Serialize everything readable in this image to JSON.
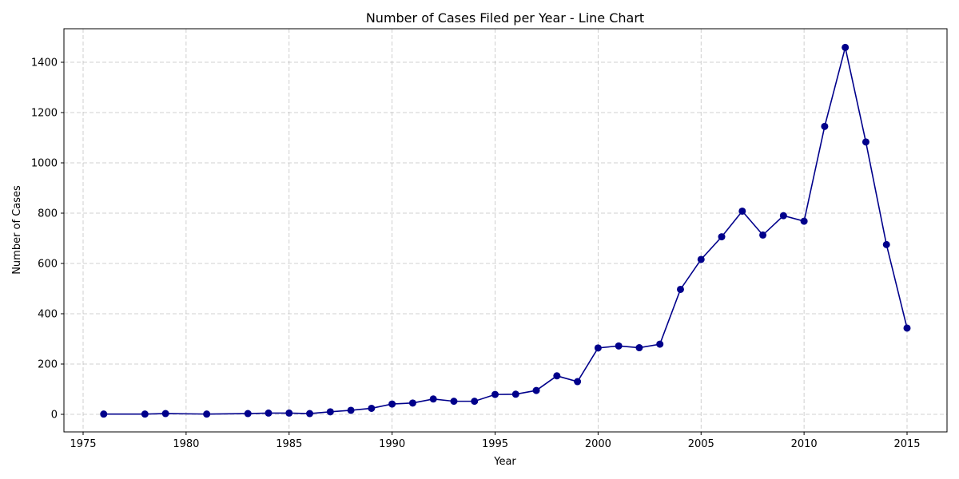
{
  "chart_data": {
    "type": "line",
    "title": "Number of Cases Filed per Year - Line Chart",
    "xlabel": "Year",
    "ylabel": "Number of Cases",
    "xlim": [
      1974.05,
      1916.95
    ],
    "ylim": [
      -72,
      1530
    ],
    "xticks": [
      1975,
      1980,
      1985,
      1990,
      1995,
      2000,
      2005,
      2010,
      2015
    ],
    "yticks": [
      0,
      200,
      400,
      600,
      800,
      1000,
      1200,
      1400
    ],
    "grid": true,
    "line_color": "#00008b",
    "series": [
      {
        "x": [
          1976,
          1978,
          1979,
          1981,
          1983,
          1984,
          1985,
          1986,
          1987,
          1988,
          1989,
          1990,
          1991,
          1992,
          1993,
          1994,
          1995,
          1996,
          1997,
          1998,
          1999,
          2000,
          2001,
          2002,
          2003,
          2004,
          2005,
          2006,
          2007,
          2008,
          2009,
          2010,
          2011,
          2012,
          2013,
          2014,
          2015
        ],
        "y": [
          1,
          1,
          3,
          1,
          3,
          5,
          5,
          3,
          10,
          16,
          24,
          41,
          45,
          61,
          52,
          52,
          79,
          80,
          95,
          153,
          130,
          264,
          272,
          265,
          279,
          497,
          616,
          706,
          808,
          713,
          790,
          768,
          1145,
          1459,
          1083,
          675,
          343
        ]
      }
    ]
  }
}
